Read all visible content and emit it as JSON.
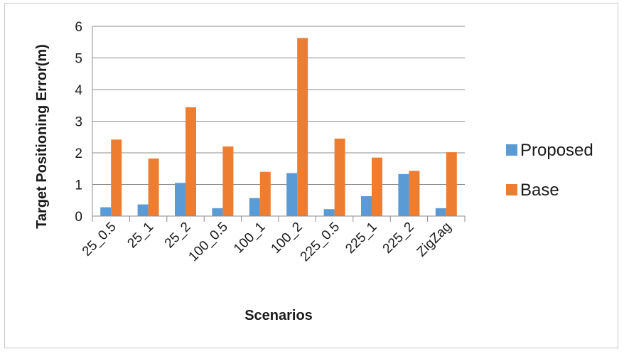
{
  "chart_data": {
    "type": "bar",
    "title": "",
    "xlabel": "Scenarios",
    "ylabel": "Target Positioning Error(m)",
    "ylim": [
      0,
      6
    ],
    "yticks": [
      0,
      1,
      2,
      3,
      4,
      5,
      6
    ],
    "grid": true,
    "legend_position": "right",
    "categories": [
      "25_0.5",
      "25_1",
      "25_2",
      "100_0.5",
      "100_1",
      "100_2",
      "225_0.5",
      "225_1",
      "225_2",
      "ZigZag"
    ],
    "series": [
      {
        "name": "Proposed",
        "color": "#5B9BD5",
        "values": [
          0.28,
          0.37,
          1.05,
          0.25,
          0.57,
          1.36,
          0.22,
          0.63,
          1.33,
          0.25
        ]
      },
      {
        "name": "Base",
        "color": "#ED7D31",
        "values": [
          2.42,
          1.82,
          3.44,
          2.2,
          1.4,
          5.63,
          2.45,
          1.85,
          1.43,
          2.02
        ]
      }
    ]
  }
}
